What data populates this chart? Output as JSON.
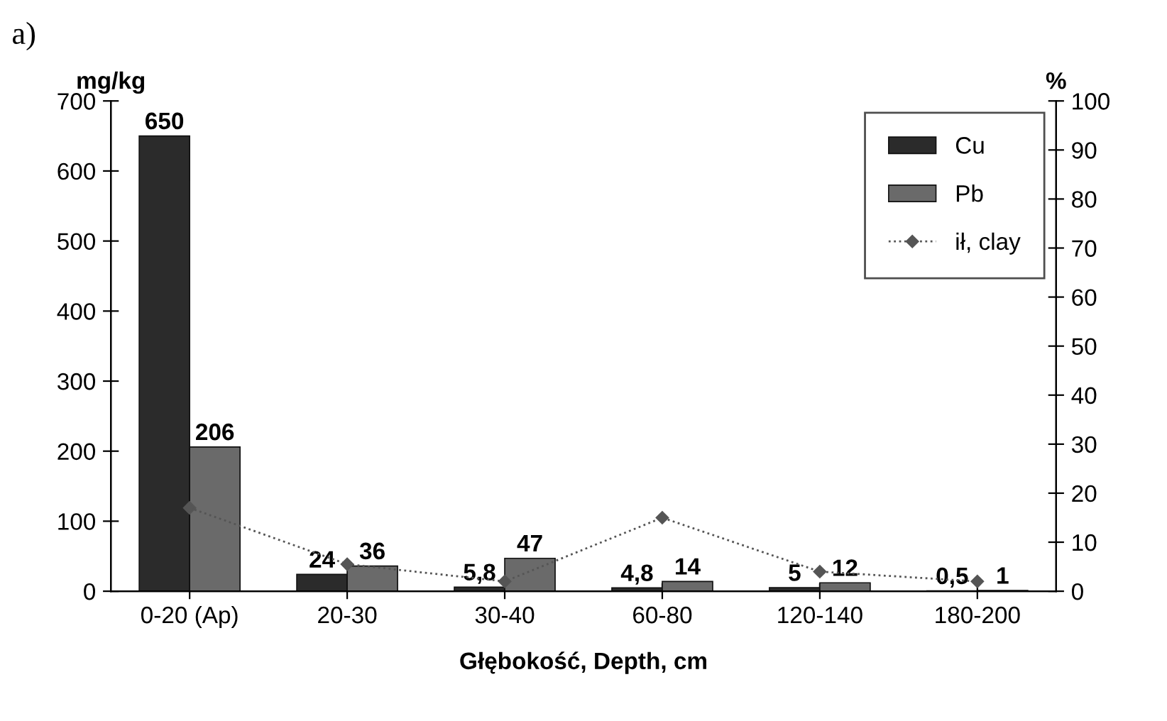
{
  "chart_data": {
    "type": "bar",
    "title": "a)",
    "xlabel": "Głębokość, Depth, cm",
    "ylabel": "mg/kg",
    "y2label": "%",
    "categories": [
      "0-20 (Ap)",
      "20-30",
      "30-40",
      "60-80",
      "120-140",
      "180-200"
    ],
    "series": [
      {
        "name": "Cu",
        "color": "#2b2b2b",
        "values": [
          650,
          24,
          5.8,
          4.8,
          5,
          0.5
        ],
        "value_labels": [
          "650",
          "24",
          "5,8",
          "4,8",
          "5",
          "0,5"
        ]
      },
      {
        "name": "Pb",
        "color": "#6a6a6a",
        "values": [
          206,
          36,
          47,
          14,
          12,
          1
        ],
        "value_labels": [
          "206",
          "36",
          "47",
          "14",
          "12",
          "1"
        ]
      },
      {
        "name": "ił, clay",
        "type": "line",
        "axis": "y2",
        "color": "#555555",
        "marker": "diamond",
        "line_style": "dotted",
        "values": [
          17,
          5.5,
          2,
          15,
          4,
          2
        ]
      }
    ],
    "ylim": [
      0,
      700
    ],
    "yticks": [
      0,
      100,
      200,
      300,
      400,
      500,
      600,
      700
    ],
    "y2lim": [
      0,
      100
    ],
    "y2ticks": [
      0,
      10,
      20,
      30,
      40,
      50,
      60,
      70,
      80,
      90,
      100
    ],
    "legend": "top right",
    "grid": false
  }
}
